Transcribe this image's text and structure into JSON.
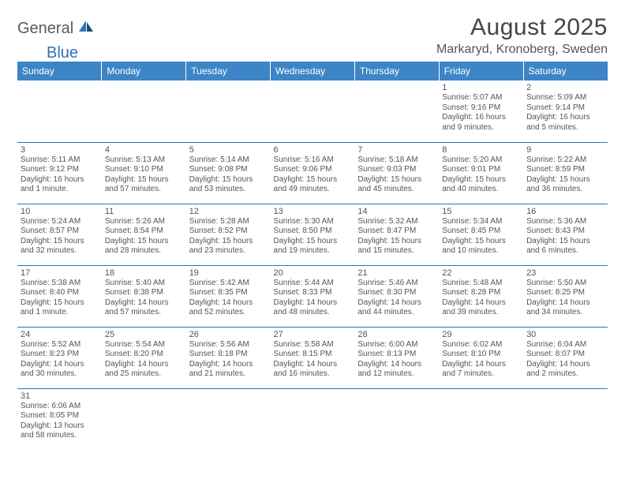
{
  "logo": {
    "part1": "General",
    "part2": "Blue"
  },
  "title": "August 2025",
  "location": "Markaryd, Kronoberg, Sweden",
  "colors": {
    "header_bg": "#3d85c6",
    "header_fg": "#ffffff",
    "border": "#2f72b8",
    "text": "#555555",
    "logo_gray": "#5a5a5a",
    "logo_blue": "#2f72b8"
  },
  "day_names": [
    "Sunday",
    "Monday",
    "Tuesday",
    "Wednesday",
    "Thursday",
    "Friday",
    "Saturday"
  ],
  "weeks": [
    [
      {},
      {},
      {},
      {},
      {},
      {
        "n": "1",
        "sr": "Sunrise: 5:07 AM",
        "ss": "Sunset: 9:16 PM",
        "dl1": "Daylight: 16 hours",
        "dl2": "and 9 minutes."
      },
      {
        "n": "2",
        "sr": "Sunrise: 5:09 AM",
        "ss": "Sunset: 9:14 PM",
        "dl1": "Daylight: 16 hours",
        "dl2": "and 5 minutes."
      }
    ],
    [
      {
        "n": "3",
        "sr": "Sunrise: 5:11 AM",
        "ss": "Sunset: 9:12 PM",
        "dl1": "Daylight: 16 hours",
        "dl2": "and 1 minute."
      },
      {
        "n": "4",
        "sr": "Sunrise: 5:13 AM",
        "ss": "Sunset: 9:10 PM",
        "dl1": "Daylight: 15 hours",
        "dl2": "and 57 minutes."
      },
      {
        "n": "5",
        "sr": "Sunrise: 5:14 AM",
        "ss": "Sunset: 9:08 PM",
        "dl1": "Daylight: 15 hours",
        "dl2": "and 53 minutes."
      },
      {
        "n": "6",
        "sr": "Sunrise: 5:16 AM",
        "ss": "Sunset: 9:06 PM",
        "dl1": "Daylight: 15 hours",
        "dl2": "and 49 minutes."
      },
      {
        "n": "7",
        "sr": "Sunrise: 5:18 AM",
        "ss": "Sunset: 9:03 PM",
        "dl1": "Daylight: 15 hours",
        "dl2": "and 45 minutes."
      },
      {
        "n": "8",
        "sr": "Sunrise: 5:20 AM",
        "ss": "Sunset: 9:01 PM",
        "dl1": "Daylight: 15 hours",
        "dl2": "and 40 minutes."
      },
      {
        "n": "9",
        "sr": "Sunrise: 5:22 AM",
        "ss": "Sunset: 8:59 PM",
        "dl1": "Daylight: 15 hours",
        "dl2": "and 36 minutes."
      }
    ],
    [
      {
        "n": "10",
        "sr": "Sunrise: 5:24 AM",
        "ss": "Sunset: 8:57 PM",
        "dl1": "Daylight: 15 hours",
        "dl2": "and 32 minutes."
      },
      {
        "n": "11",
        "sr": "Sunrise: 5:26 AM",
        "ss": "Sunset: 8:54 PM",
        "dl1": "Daylight: 15 hours",
        "dl2": "and 28 minutes."
      },
      {
        "n": "12",
        "sr": "Sunrise: 5:28 AM",
        "ss": "Sunset: 8:52 PM",
        "dl1": "Daylight: 15 hours",
        "dl2": "and 23 minutes."
      },
      {
        "n": "13",
        "sr": "Sunrise: 5:30 AM",
        "ss": "Sunset: 8:50 PM",
        "dl1": "Daylight: 15 hours",
        "dl2": "and 19 minutes."
      },
      {
        "n": "14",
        "sr": "Sunrise: 5:32 AM",
        "ss": "Sunset: 8:47 PM",
        "dl1": "Daylight: 15 hours",
        "dl2": "and 15 minutes."
      },
      {
        "n": "15",
        "sr": "Sunrise: 5:34 AM",
        "ss": "Sunset: 8:45 PM",
        "dl1": "Daylight: 15 hours",
        "dl2": "and 10 minutes."
      },
      {
        "n": "16",
        "sr": "Sunrise: 5:36 AM",
        "ss": "Sunset: 8:43 PM",
        "dl1": "Daylight: 15 hours",
        "dl2": "and 6 minutes."
      }
    ],
    [
      {
        "n": "17",
        "sr": "Sunrise: 5:38 AM",
        "ss": "Sunset: 8:40 PM",
        "dl1": "Daylight: 15 hours",
        "dl2": "and 1 minute."
      },
      {
        "n": "18",
        "sr": "Sunrise: 5:40 AM",
        "ss": "Sunset: 8:38 PM",
        "dl1": "Daylight: 14 hours",
        "dl2": "and 57 minutes."
      },
      {
        "n": "19",
        "sr": "Sunrise: 5:42 AM",
        "ss": "Sunset: 8:35 PM",
        "dl1": "Daylight: 14 hours",
        "dl2": "and 52 minutes."
      },
      {
        "n": "20",
        "sr": "Sunrise: 5:44 AM",
        "ss": "Sunset: 8:33 PM",
        "dl1": "Daylight: 14 hours",
        "dl2": "and 48 minutes."
      },
      {
        "n": "21",
        "sr": "Sunrise: 5:46 AM",
        "ss": "Sunset: 8:30 PM",
        "dl1": "Daylight: 14 hours",
        "dl2": "and 44 minutes."
      },
      {
        "n": "22",
        "sr": "Sunrise: 5:48 AM",
        "ss": "Sunset: 8:28 PM",
        "dl1": "Daylight: 14 hours",
        "dl2": "and 39 minutes."
      },
      {
        "n": "23",
        "sr": "Sunrise: 5:50 AM",
        "ss": "Sunset: 8:25 PM",
        "dl1": "Daylight: 14 hours",
        "dl2": "and 34 minutes."
      }
    ],
    [
      {
        "n": "24",
        "sr": "Sunrise: 5:52 AM",
        "ss": "Sunset: 8:23 PM",
        "dl1": "Daylight: 14 hours",
        "dl2": "and 30 minutes."
      },
      {
        "n": "25",
        "sr": "Sunrise: 5:54 AM",
        "ss": "Sunset: 8:20 PM",
        "dl1": "Daylight: 14 hours",
        "dl2": "and 25 minutes."
      },
      {
        "n": "26",
        "sr": "Sunrise: 5:56 AM",
        "ss": "Sunset: 8:18 PM",
        "dl1": "Daylight: 14 hours",
        "dl2": "and 21 minutes."
      },
      {
        "n": "27",
        "sr": "Sunrise: 5:58 AM",
        "ss": "Sunset: 8:15 PM",
        "dl1": "Daylight: 14 hours",
        "dl2": "and 16 minutes."
      },
      {
        "n": "28",
        "sr": "Sunrise: 6:00 AM",
        "ss": "Sunset: 8:13 PM",
        "dl1": "Daylight: 14 hours",
        "dl2": "and 12 minutes."
      },
      {
        "n": "29",
        "sr": "Sunrise: 6:02 AM",
        "ss": "Sunset: 8:10 PM",
        "dl1": "Daylight: 14 hours",
        "dl2": "and 7 minutes."
      },
      {
        "n": "30",
        "sr": "Sunrise: 6:04 AM",
        "ss": "Sunset: 8:07 PM",
        "dl1": "Daylight: 14 hours",
        "dl2": "and 2 minutes."
      }
    ],
    [
      {
        "n": "31",
        "sr": "Sunrise: 6:06 AM",
        "ss": "Sunset: 8:05 PM",
        "dl1": "Daylight: 13 hours",
        "dl2": "and 58 minutes."
      },
      {},
      {},
      {},
      {},
      {},
      {}
    ]
  ]
}
